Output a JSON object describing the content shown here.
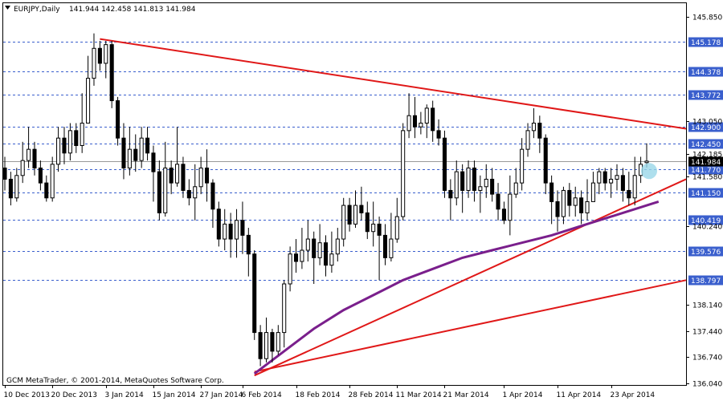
{
  "header": {
    "symbol": "EURJPY,Daily",
    "ohlc": "141.944 142.458 141.813 141.984"
  },
  "footer": {
    "copyright": "GCM MetaTrader, © 2001-2014, MetaQuotes Software Corp."
  },
  "colors": {
    "background": "#ffffff",
    "grid": "#d9d9d9",
    "level_line": "#3a5fcd",
    "level_label_bg": "#3a5fcd",
    "trendline": "#e01818",
    "moving_average": "#7a1f8c",
    "current_price_bg": "#000000",
    "highlight": "#9ad7e8",
    "candle_body_bull": "#ffffff",
    "candle_body_bear": "#000000"
  },
  "chart_data": {
    "type": "candlestick",
    "title": "EURJPY,Daily",
    "ylim": [
      136.04,
      145.95
    ],
    "y_ticks": [
      "145.850",
      "145.178",
      "144.378",
      "143.772",
      "143.050",
      "142.900",
      "142.450",
      "142.185",
      "141.984",
      "141.770",
      "141.580",
      "141.150",
      "140.419",
      "140.240",
      "139.576",
      "138.797",
      "138.140",
      "137.440",
      "136.740",
      "136.040"
    ],
    "x_ticks": [
      "10 Dec 2013",
      "20 Dec 2013",
      "3 Jan 2014",
      "15 Jan 2014",
      "27 Jan 2014",
      "6 Feb 2014",
      "18 Feb 2014",
      "28 Feb 2014",
      "11 Mar 2014",
      "21 Mar 2014",
      "1 Apr 2014",
      "11 Apr 2014",
      "23 Apr 2014"
    ],
    "horizontal_levels": [
      "145.178",
      "144.378",
      "143.772",
      "142.900",
      "142.450",
      "141.770",
      "141.150",
      "140.419",
      "139.576",
      "138.797"
    ],
    "current_price": "141.984",
    "candles": [
      [
        141.8,
        141.5,
        142.1,
        141.2
      ],
      [
        141.5,
        141.0,
        141.7,
        140.8
      ],
      [
        141.0,
        141.6,
        141.8,
        140.9
      ],
      [
        141.6,
        142.0,
        142.5,
        141.4
      ],
      [
        142.0,
        142.3,
        142.9,
        141.8
      ],
      [
        142.3,
        141.8,
        142.5,
        141.6
      ],
      [
        141.8,
        141.4,
        142.0,
        141.2
      ],
      [
        141.4,
        141.0,
        141.6,
        140.9
      ],
      [
        141.0,
        141.9,
        142.1,
        140.9
      ],
      [
        141.9,
        142.6,
        142.9,
        141.7
      ],
      [
        142.6,
        142.2,
        142.9,
        141.9
      ],
      [
        142.2,
        142.8,
        143.0,
        142.0
      ],
      [
        142.8,
        142.4,
        143.0,
        142.2
      ],
      [
        142.4,
        143.0,
        143.8,
        142.2
      ],
      [
        143.0,
        144.2,
        144.8,
        143.0
      ],
      [
        144.2,
        145.0,
        145.4,
        144.0
      ],
      [
        145.0,
        144.6,
        145.2,
        144.4
      ],
      [
        144.6,
        145.1,
        145.2,
        144.2
      ],
      [
        145.1,
        143.6,
        145.2,
        143.4
      ],
      [
        143.6,
        142.6,
        143.7,
        142.4
      ],
      [
        142.6,
        141.8,
        143.0,
        141.5
      ],
      [
        141.8,
        142.3,
        142.9,
        141.6
      ],
      [
        142.3,
        142.0,
        142.7,
        141.7
      ],
      [
        142.0,
        142.6,
        142.9,
        141.8
      ],
      [
        142.6,
        142.2,
        142.9,
        142.0
      ],
      [
        142.2,
        141.7,
        142.4,
        140.9
      ],
      [
        141.7,
        140.6,
        142.0,
        140.4
      ],
      [
        140.6,
        141.8,
        142.5,
        140.5
      ],
      [
        141.8,
        141.4,
        142.0,
        141.1
      ],
      [
        141.4,
        141.9,
        142.9,
        141.3
      ],
      [
        141.9,
        141.2,
        142.1,
        141.0
      ],
      [
        141.2,
        141.0,
        141.5,
        140.8
      ],
      [
        141.0,
        141.3,
        141.9,
        140.4
      ],
      [
        141.3,
        141.8,
        142.1,
        141.1
      ],
      [
        141.8,
        141.4,
        142.3,
        140.9
      ],
      [
        141.4,
        140.7,
        141.5,
        140.2
      ],
      [
        140.7,
        139.9,
        140.9,
        139.7
      ],
      [
        139.9,
        140.3,
        140.7,
        139.6
      ],
      [
        140.3,
        139.9,
        140.6,
        139.4
      ],
      [
        139.9,
        140.4,
        140.7,
        139.4
      ],
      [
        140.4,
        140.0,
        140.9,
        139.5
      ],
      [
        140.0,
        139.5,
        140.2,
        138.9
      ],
      [
        139.5,
        137.4,
        139.6,
        137.2
      ],
      [
        137.4,
        136.7,
        137.6,
        136.5
      ],
      [
        136.7,
        137.4,
        137.8,
        136.6
      ],
      [
        137.4,
        136.9,
        137.5,
        136.6
      ],
      [
        136.9,
        137.4,
        137.6,
        136.8
      ],
      [
        137.4,
        138.7,
        138.8,
        137.0
      ],
      [
        138.7,
        139.5,
        139.7,
        138.5
      ],
      [
        139.5,
        139.3,
        139.9,
        139.0
      ],
      [
        139.3,
        139.6,
        140.2,
        139.1
      ],
      [
        139.6,
        139.9,
        140.4,
        139.3
      ],
      [
        139.9,
        139.4,
        140.1,
        138.7
      ],
      [
        139.4,
        139.8,
        140.3,
        139.2
      ],
      [
        139.8,
        139.2,
        140.0,
        138.9
      ],
      [
        139.2,
        139.5,
        140.1,
        139.0
      ],
      [
        139.5,
        139.9,
        140.2,
        139.3
      ],
      [
        139.9,
        140.8,
        141.0,
        139.7
      ],
      [
        140.8,
        140.3,
        141.0,
        140.1
      ],
      [
        140.3,
        140.8,
        141.2,
        140.2
      ],
      [
        140.8,
        140.6,
        141.3,
        140.4
      ],
      [
        140.6,
        140.1,
        140.9,
        139.9
      ],
      [
        140.1,
        140.3,
        140.9,
        139.7
      ],
      [
        140.3,
        140.0,
        140.5,
        138.8
      ],
      [
        140.0,
        139.4,
        140.3,
        139.2
      ],
      [
        139.4,
        139.9,
        140.6,
        139.3
      ],
      [
        139.9,
        140.5,
        141.0,
        139.8
      ],
      [
        140.5,
        142.8,
        143.0,
        140.4
      ],
      [
        142.8,
        143.2,
        143.8,
        142.6
      ],
      [
        143.2,
        142.9,
        143.7,
        142.6
      ],
      [
        142.9,
        143.0,
        143.3,
        142.7
      ],
      [
        143.0,
        143.4,
        143.5,
        142.6
      ],
      [
        143.4,
        142.8,
        143.6,
        142.5
      ],
      [
        142.8,
        142.6,
        143.1,
        142.4
      ],
      [
        142.6,
        141.2,
        142.8,
        141.0
      ],
      [
        141.2,
        141.0,
        141.5,
        140.4
      ],
      [
        141.0,
        141.7,
        142.0,
        140.8
      ],
      [
        141.7,
        141.2,
        141.9,
        140.6
      ],
      [
        141.2,
        141.8,
        142.0,
        141.0
      ],
      [
        141.8,
        141.2,
        142.0,
        140.9
      ],
      [
        141.2,
        141.3,
        141.6,
        140.6
      ],
      [
        141.3,
        141.5,
        141.9,
        141.0
      ],
      [
        141.5,
        141.1,
        141.8,
        140.9
      ],
      [
        141.1,
        140.7,
        141.4,
        140.4
      ],
      [
        140.7,
        140.4,
        140.9,
        140.3
      ],
      [
        140.4,
        141.1,
        141.6,
        140.0
      ],
      [
        141.1,
        141.4,
        141.8,
        141.0
      ],
      [
        141.4,
        142.3,
        142.6,
        141.2
      ],
      [
        142.3,
        142.8,
        143.0,
        142.1
      ],
      [
        142.8,
        143.0,
        143.4,
        142.6
      ],
      [
        143.0,
        142.6,
        143.2,
        142.2
      ],
      [
        142.6,
        141.4,
        142.7,
        141.1
      ],
      [
        141.4,
        140.9,
        141.6,
        140.3
      ],
      [
        140.9,
        140.5,
        141.2,
        140.1
      ],
      [
        140.5,
        141.2,
        141.3,
        140.3
      ],
      [
        141.2,
        140.8,
        141.4,
        140.5
      ],
      [
        140.8,
        141.0,
        141.3,
        140.5
      ],
      [
        141.0,
        140.6,
        141.2,
        140.3
      ],
      [
        140.6,
        140.9,
        141.5,
        140.4
      ],
      [
        140.9,
        141.4,
        141.7,
        140.9
      ],
      [
        141.4,
        141.7,
        141.8,
        141.1
      ],
      [
        141.7,
        141.4,
        141.8,
        141.2
      ],
      [
        141.4,
        141.5,
        141.8,
        141.0
      ],
      [
        141.5,
        141.6,
        141.9,
        141.2
      ],
      [
        141.6,
        141.2,
        141.8,
        140.9
      ],
      [
        141.2,
        141.0,
        141.7,
        140.8
      ],
      [
        141.0,
        141.6,
        142.1,
        140.8
      ],
      [
        141.6,
        141.9,
        142.1,
        141.4
      ],
      [
        141.944,
        141.984,
        142.458,
        141.813
      ]
    ],
    "moving_average": [
      [
        42,
        136.3
      ],
      [
        47,
        136.9
      ],
      [
        52,
        137.5
      ],
      [
        57,
        138.0
      ],
      [
        62,
        138.4
      ],
      [
        67,
        138.8
      ],
      [
        72,
        139.1
      ],
      [
        77,
        139.4
      ],
      [
        82,
        139.6
      ],
      [
        87,
        139.8
      ],
      [
        92,
        140.0
      ],
      [
        97,
        140.25
      ],
      [
        102,
        140.5
      ],
      [
        107,
        140.75
      ],
      [
        110,
        140.9
      ]
    ],
    "trendlines": [
      {
        "from": [
          16,
          145.25
        ],
        "to": [
          125,
          142.85
        ]
      },
      {
        "from": [
          42,
          136.25
        ],
        "to": [
          125,
          141.5
        ]
      },
      {
        "from": [
          42,
          136.35
        ],
        "to": [
          125,
          138.8
        ]
      }
    ]
  }
}
